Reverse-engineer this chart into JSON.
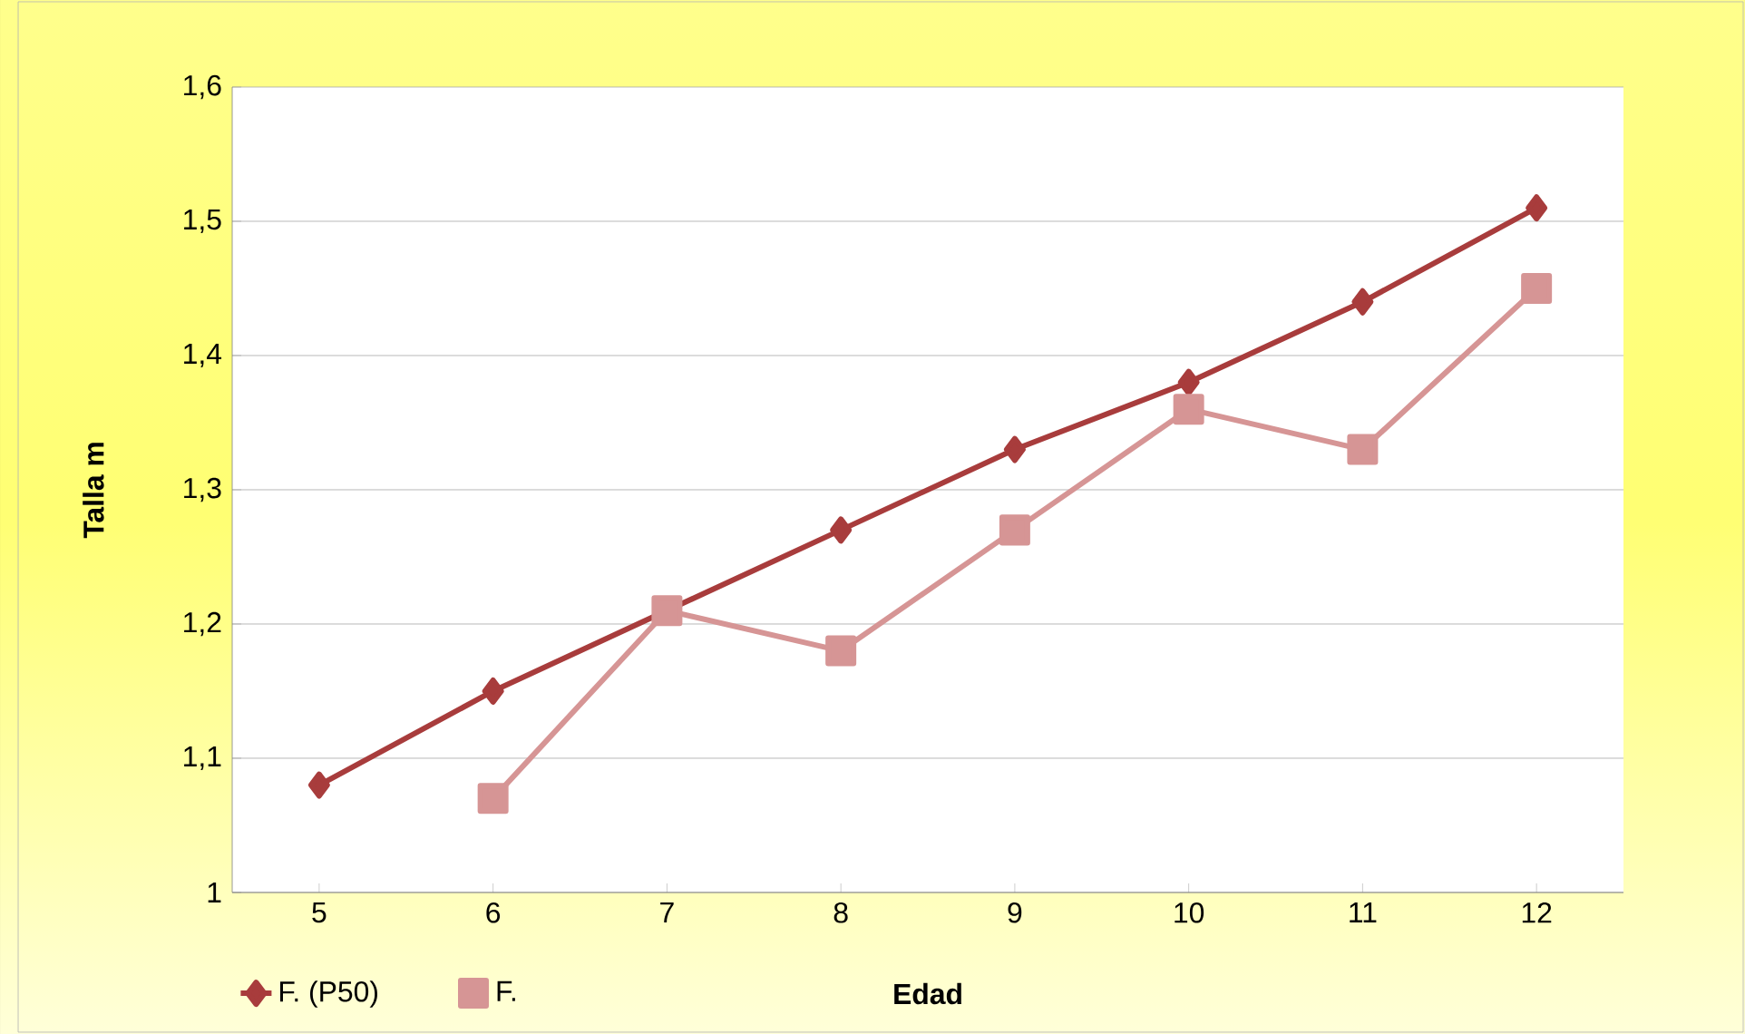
{
  "chart_data": {
    "type": "line",
    "xlabel": "Edad",
    "ylabel": "Talla m",
    "categories": [
      "5",
      "6",
      "7",
      "8",
      "9",
      "10",
      "11",
      "12"
    ],
    "series": [
      {
        "name": "F. (P50)",
        "color": "#a83c3c",
        "marker": "diamond",
        "values": [
          1.08,
          1.15,
          1.21,
          1.27,
          1.33,
          1.38,
          1.44,
          1.51
        ]
      },
      {
        "name": "F.",
        "color": "#d69595",
        "marker": "square",
        "values": [
          null,
          1.07,
          1.21,
          1.18,
          1.27,
          1.36,
          1.33,
          1.45
        ]
      }
    ],
    "ylim": [
      1,
      1.6
    ],
    "yticks": [
      1,
      {
        "value": 1.1,
        "label": "1,1"
      },
      {
        "value": 1.2,
        "label": "1,2"
      },
      {
        "value": 1.3,
        "label": "1,3"
      },
      {
        "value": 1.4,
        "label": "1,4"
      },
      {
        "value": 1.5,
        "label": "1,5"
      },
      {
        "value": 1.6,
        "label": "1,6"
      }
    ],
    "grid": "y",
    "legend": "bottom",
    "line_style": "solid"
  }
}
